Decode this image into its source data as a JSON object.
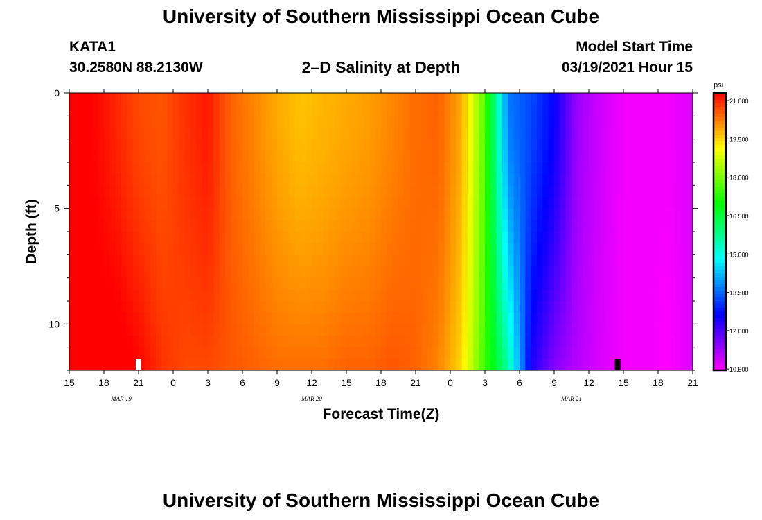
{
  "header": {
    "title": "University of Southern Mississippi Ocean Cube",
    "station": "KATA1",
    "coords": "30.2580N 88.2130W",
    "subtitle": "2–D Salinity at Depth",
    "model_label": "Model Start Time",
    "model_time": "03/19/2021 Hour 15"
  },
  "footer": {
    "title": "University of Southern Mississippi Ocean Cube"
  },
  "chart_data": {
    "type": "heatmap",
    "title": "2-D Salinity at Depth",
    "xlabel": "Forecast Time(Z)",
    "ylabel": "Depth (ft)",
    "x_ticks": [
      "15",
      "18",
      "21",
      "0",
      "3",
      "6",
      "9",
      "12",
      "15",
      "18",
      "21",
      "0",
      "3",
      "6",
      "9",
      "12",
      "15",
      "18",
      "21"
    ],
    "x_date_labels": [
      {
        "label": "MAR 19",
        "hour": 4.5
      },
      {
        "label": "MAR 20",
        "hour": 21
      },
      {
        "label": "MAR 21",
        "hour": 43.5
      }
    ],
    "x_range_hours": [
      0,
      54
    ],
    "y_ticks": [
      "0",
      "5",
      "10"
    ],
    "y_range_ft": [
      0,
      12
    ],
    "colorbar": {
      "unit": "psu",
      "ticks": [
        "21.000",
        "19.500",
        "18.000",
        "16.500",
        "15.000",
        "13.500",
        "12.000",
        "10.500"
      ],
      "range": [
        10.5,
        21.0
      ]
    },
    "markers": [
      {
        "hour": 6.0,
        "color": "#ffffff"
      },
      {
        "hour": 47.5,
        "color": "#000000"
      }
    ],
    "profile_hours": [
      0,
      2,
      4,
      6,
      8,
      10,
      12,
      14,
      16,
      18,
      20,
      22,
      24,
      26,
      28,
      30,
      32,
      34,
      36,
      38,
      40,
      42,
      44,
      46,
      48,
      50,
      52,
      54
    ],
    "surface_psu": [
      21.0,
      21.0,
      20.7,
      20.4,
      20.3,
      20.6,
      20.8,
      20.2,
      19.9,
      19.6,
      19.4,
      19.5,
      19.6,
      19.7,
      19.9,
      20.1,
      20.2,
      19.6,
      17.5,
      13.6,
      13.2,
      12.6,
      11.3,
      10.9,
      10.6,
      10.6,
      10.6,
      10.8
    ],
    "bottom_psu": [
      21.0,
      21.1,
      21.2,
      21.0,
      20.6,
      20.4,
      20.4,
      20.3,
      20.2,
      20.1,
      20.1,
      20.1,
      20.2,
      20.2,
      20.3,
      20.2,
      19.9,
      19.2,
      17.3,
      15.5,
      12.4,
      11.5,
      11.1,
      10.8,
      10.6,
      10.6,
      10.5,
      10.8
    ]
  }
}
